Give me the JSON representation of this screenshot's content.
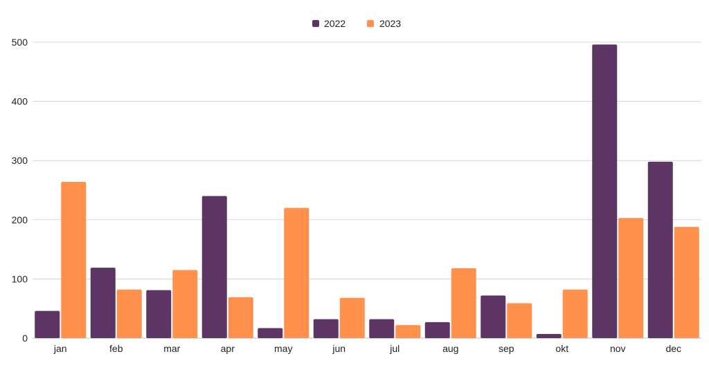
{
  "chart_data": {
    "type": "bar",
    "categories": [
      "jan",
      "feb",
      "mar",
      "apr",
      "may",
      "jun",
      "jul",
      "aug",
      "sep",
      "okt",
      "nov",
      "dec"
    ],
    "series": [
      {
        "name": "2022",
        "color": "#5c3564",
        "values": [
          46,
          119,
          81,
          240,
          17,
          32,
          32,
          27,
          72,
          7,
          496,
          298
        ]
      },
      {
        "name": "2023",
        "color": "#ff914d",
        "values": [
          264,
          82,
          115,
          69,
          220,
          68,
          22,
          118,
          59,
          82,
          203,
          188
        ]
      }
    ],
    "ylim": [
      0,
      500
    ],
    "yticks": [
      0,
      100,
      200,
      300,
      400,
      500
    ],
    "grid": true,
    "legend_position": "top-center"
  }
}
